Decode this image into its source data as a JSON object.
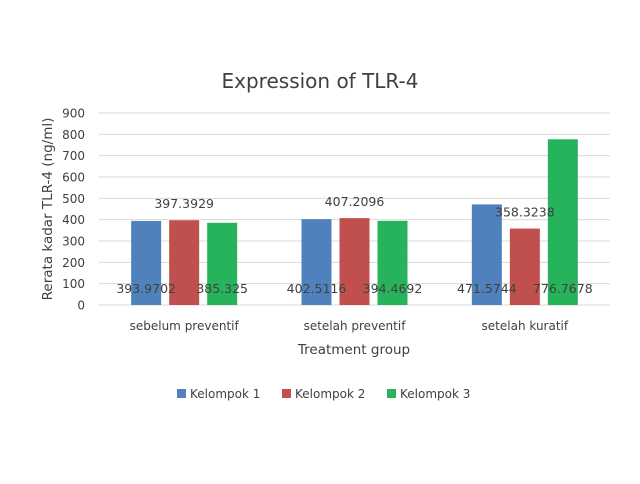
{
  "chart_data": {
    "type": "bar",
    "title": "Expression of TLR-4",
    "xlabel": "Treatment group",
    "ylabel": "Rerata kadar TLR-4 (ng/ml)",
    "ylim": [
      0,
      900
    ],
    "yticks": [
      0,
      100,
      200,
      300,
      400,
      500,
      600,
      700,
      800,
      900
    ],
    "grid": true,
    "legend_position": "bottom",
    "categories": [
      "sebelum preventif",
      "setelah preventif",
      "setelah kuratif"
    ],
    "series": [
      {
        "name": "Kelompok 1",
        "color": "#4f81bd",
        "values": [
          393.9702,
          402.5116,
          471.5744
        ],
        "labels": [
          "393.9702",
          "402.5116",
          "471.5744"
        ]
      },
      {
        "name": "Kelompok 2",
        "color": "#c0504d",
        "values": [
          397.3929,
          407.2096,
          358.3238
        ],
        "labels": [
          "397.3929",
          "407.2096",
          "358.3238"
        ]
      },
      {
        "name": "Kelompok 3",
        "color": "#27b35b",
        "values": [
          385.325,
          394.4692,
          776.7678
        ],
        "labels": [
          "385.325",
          "394.4692",
          "776.7678"
        ]
      }
    ]
  }
}
